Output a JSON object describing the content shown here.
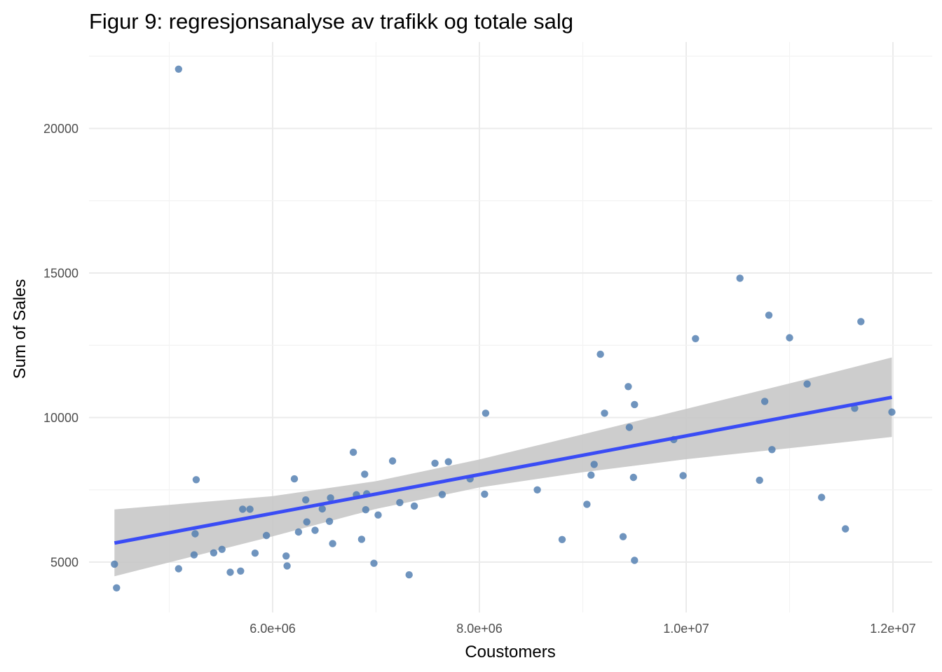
{
  "chart_data": {
    "type": "scatter",
    "title": "Figur 9: regresjonsanalyse av trafikk og totale salg",
    "xlabel": "Coustomers",
    "ylabel": "Sum of Sales",
    "xlim": [
      4400000,
      12400000
    ],
    "ylim": [
      3400000,
      22800
    ],
    "x_ticks": [
      6000000,
      8000000,
      10000000,
      12000000
    ],
    "x_tick_labels": [
      "6.0e+06",
      "8.0e+06",
      "1.0e+07",
      "1.2e+07"
    ],
    "y_ticks": [
      5000,
      10000,
      15000,
      20000
    ],
    "y_tick_labels": [
      "5000",
      "10000",
      "15000",
      "20000"
    ],
    "grid": true,
    "point_color": "#4f7cb0",
    "line_color": "#3a4cf5",
    "band_color": "#c8c8c8",
    "points": [
      [
        4470000,
        4930
      ],
      [
        4490000,
        4110
      ],
      [
        5090000,
        22050
      ],
      [
        5090000,
        4770
      ],
      [
        5240000,
        5250
      ],
      [
        5250000,
        5980
      ],
      [
        5260000,
        7850
      ],
      [
        5430000,
        5320
      ],
      [
        5510000,
        5440
      ],
      [
        5590000,
        4650
      ],
      [
        5690000,
        4690
      ],
      [
        5710000,
        6830
      ],
      [
        5780000,
        6830
      ],
      [
        5830000,
        5310
      ],
      [
        5940000,
        5920
      ],
      [
        6130000,
        5210
      ],
      [
        6140000,
        4870
      ],
      [
        6210000,
        7880
      ],
      [
        6250000,
        6040
      ],
      [
        6320000,
        7150
      ],
      [
        6330000,
        6390
      ],
      [
        6410000,
        6100
      ],
      [
        6480000,
        6840
      ],
      [
        6550000,
        6410
      ],
      [
        6560000,
        7220
      ],
      [
        6580000,
        5640
      ],
      [
        6780000,
        8800
      ],
      [
        6810000,
        7330
      ],
      [
        6860000,
        5790
      ],
      [
        6890000,
        8040
      ],
      [
        6900000,
        6810
      ],
      [
        6910000,
        7360
      ],
      [
        6980000,
        4960
      ],
      [
        7020000,
        6630
      ],
      [
        7160000,
        8500
      ],
      [
        7230000,
        7060
      ],
      [
        7320000,
        4560
      ],
      [
        7370000,
        6940
      ],
      [
        7570000,
        8420
      ],
      [
        7640000,
        7340
      ],
      [
        7700000,
        8470
      ],
      [
        7910000,
        7880
      ],
      [
        8050000,
        7350
      ],
      [
        8060000,
        10150
      ],
      [
        8560000,
        7500
      ],
      [
        8800000,
        5780
      ],
      [
        9040000,
        7000
      ],
      [
        9080000,
        8010
      ],
      [
        9110000,
        8380
      ],
      [
        9170000,
        12190
      ],
      [
        9210000,
        10150
      ],
      [
        9390000,
        5880
      ],
      [
        9440000,
        11070
      ],
      [
        9450000,
        9660
      ],
      [
        9490000,
        7930
      ],
      [
        9500000,
        10450
      ],
      [
        9500000,
        5060
      ],
      [
        9880000,
        9240
      ],
      [
        9970000,
        7990
      ],
      [
        10090000,
        12730
      ],
      [
        10520000,
        14820
      ],
      [
        10710000,
        7830
      ],
      [
        10760000,
        10560
      ],
      [
        10800000,
        13540
      ],
      [
        10830000,
        8890
      ],
      [
        11000000,
        12760
      ],
      [
        11170000,
        11160
      ],
      [
        11310000,
        7240
      ],
      [
        11540000,
        6150
      ],
      [
        11630000,
        10320
      ],
      [
        11690000,
        13320
      ],
      [
        11990000,
        10190
      ]
    ],
    "regression_line": [
      [
        4470000,
        5660
      ],
      [
        11990000,
        10700
      ]
    ],
    "confidence_band": {
      "x": [
        4470000,
        6000000,
        7000000,
        8000000,
        9000000,
        10000000,
        11000000,
        11990000
      ],
      "upper": [
        6820,
        7280,
        7800,
        8550,
        9420,
        10300,
        11180,
        12080
      ],
      "lower": [
        4510,
        5890,
        6840,
        7580,
        8110,
        8560,
        8940,
        9330
      ]
    }
  }
}
